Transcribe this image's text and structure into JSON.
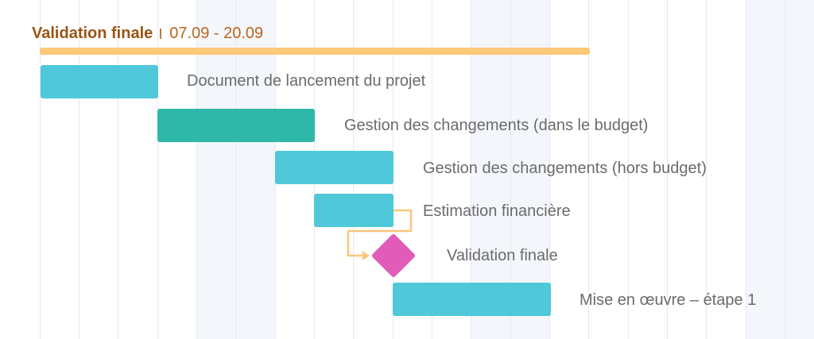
{
  "colors": {
    "summary": "#fdc97a",
    "task": "#4fc8d9",
    "task_selected": "#2fb8a8",
    "milestone": "#e05cb8",
    "connector": "#fbc67a",
    "header_title": "#9a5414",
    "header_dates": "#b8661e",
    "label": "#6b6b6b"
  },
  "summary": {
    "title": "Validation finale",
    "dates": "07.09 - 20.09"
  },
  "tasks": [
    {
      "label": "Document de lancement du projet",
      "kind": "task",
      "color": "#4fc8d9"
    },
    {
      "label": "Gestion des changements (dans le budget)",
      "kind": "task",
      "color": "#2fb8a8"
    },
    {
      "label": "Gestion des changements (hors budget)",
      "kind": "task",
      "color": "#4fc8d9"
    },
    {
      "label": "Estimation financière",
      "kind": "task",
      "color": "#4fc8d9"
    },
    {
      "label": "Validation finale",
      "kind": "milestone",
      "color": "#e05cb8"
    },
    {
      "label": "Mise en œuvre – étape 1",
      "kind": "task",
      "color": "#4fc8d9"
    }
  ]
}
